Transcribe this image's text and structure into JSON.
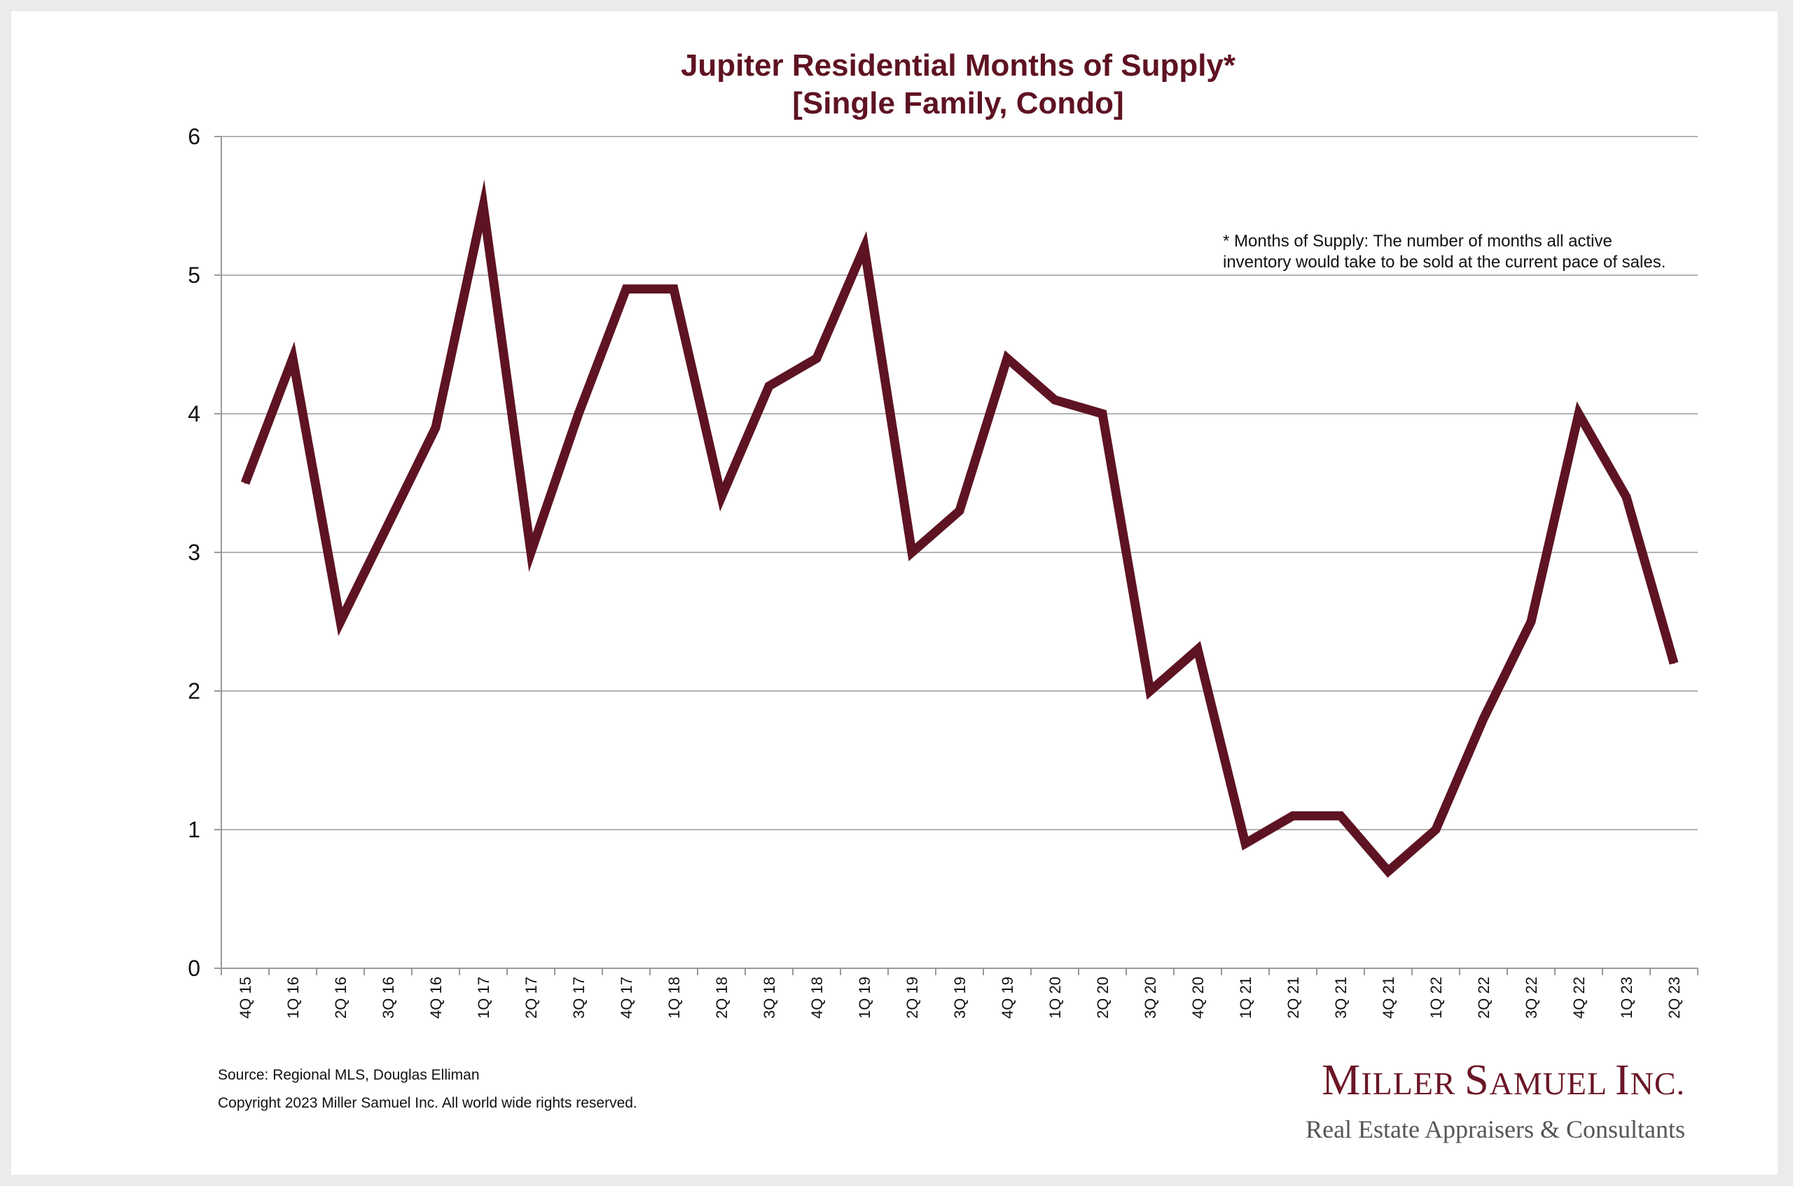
{
  "chart_data": {
    "type": "line",
    "title": "Jupiter Residential Months of Supply*",
    "subtitle": "[Single Family, Condo]",
    "xlabel": "",
    "ylabel": "",
    "ylim": [
      0,
      6
    ],
    "yticks": [
      "0",
      "1",
      "2",
      "3",
      "4",
      "5",
      "6"
    ],
    "grid": true,
    "categories": [
      "4Q 15",
      "1Q 16",
      "2Q 16",
      "3Q 16",
      "4Q 16",
      "1Q 17",
      "2Q 17",
      "3Q 17",
      "4Q 17",
      "1Q 18",
      "2Q 18",
      "3Q 18",
      "4Q 18",
      "1Q 19",
      "2Q 19",
      "3Q 19",
      "4Q 19",
      "1Q 20",
      "2Q 20",
      "3Q 20",
      "4Q 20",
      "1Q 21",
      "2Q 21",
      "3Q 21",
      "4Q 21",
      "1Q 22",
      "2Q 22",
      "3Q 22",
      "4Q 22",
      "1Q 23",
      "2Q 23"
    ],
    "series": [
      {
        "values": [
          3.5,
          4.4,
          2.5,
          3.2,
          3.9,
          5.5,
          3.0,
          4.0,
          4.9,
          4.9,
          3.4,
          4.2,
          4.4,
          5.2,
          3.0,
          3.3,
          4.4,
          4.1,
          4.0,
          2.0,
          2.3,
          0.9,
          1.1,
          1.1,
          0.7,
          1.0,
          1.8,
          2.5,
          4.0,
          3.4,
          2.2
        ],
        "color": "#5e1322"
      }
    ],
    "annotation": {
      "line1": "* Months of Supply: The number of months all active",
      "line2": "inventory would take to be sold at the current pace of sales."
    }
  },
  "source": {
    "text": "Source: Regional MLS, Douglas Elliman",
    "copyright": "Copyright 2023 Miller Samuel Inc.  All world wide rights reserved."
  },
  "logo": {
    "name_M": "M",
    "name_iller": "ILLER ",
    "name_S": "S",
    "name_amuel": "AMUEL ",
    "name_I": "I",
    "name_nc": "NC.",
    "tagline": "Real Estate Appraisers & Consultants"
  },
  "colors": {
    "line": "#5e1322",
    "title": "#5e1322",
    "grid": "#b3b3b3"
  }
}
